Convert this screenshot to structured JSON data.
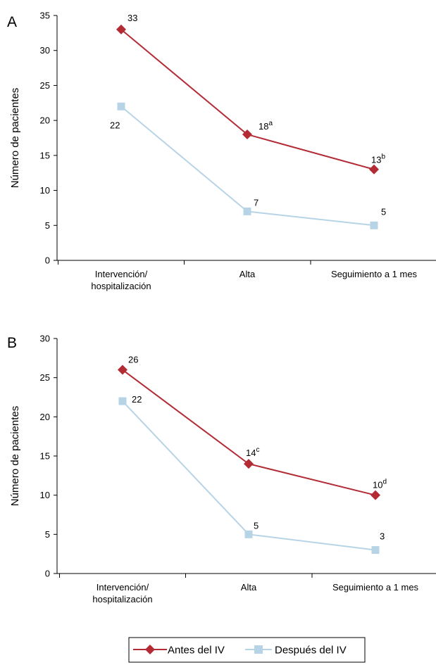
{
  "legend": {
    "series": [
      {
        "name": "Antes del IV",
        "color": "#b22b35",
        "marker": "diamond"
      },
      {
        "name": "Después del IV",
        "color": "#b7d4e6",
        "marker": "square"
      }
    ]
  },
  "chart_data": [
    {
      "type": "line",
      "panel": "A",
      "ylabel": "Número de pacientes",
      "ylim": [
        0,
        35
      ],
      "yticks": [
        0,
        5,
        10,
        15,
        20,
        25,
        30,
        35
      ],
      "categories": [
        [
          "Intervención/",
          "hospitalización"
        ],
        [
          "Alta"
        ],
        [
          "Seguimiento a 1 mes"
        ]
      ],
      "series": [
        {
          "name": "Antes del IV",
          "values": [
            33,
            18,
            13
          ],
          "labels": [
            "33",
            "18",
            "13"
          ],
          "superscripts": [
            "",
            "a",
            "b"
          ]
        },
        {
          "name": "Después del IV",
          "values": [
            22,
            7,
            5
          ],
          "labels": [
            "22",
            "7",
            "5"
          ],
          "superscripts": [
            "",
            "",
            ""
          ]
        }
      ]
    },
    {
      "type": "line",
      "panel": "B",
      "ylabel": "Número de pacientes",
      "ylim": [
        0,
        30
      ],
      "yticks": [
        0,
        5,
        10,
        15,
        20,
        25,
        30
      ],
      "categories": [
        [
          "Intervención/",
          "hospitalización"
        ],
        [
          "Alta"
        ],
        [
          "Seguimiento a 1 mes"
        ]
      ],
      "series": [
        {
          "name": "Antes del IV",
          "values": [
            26,
            14,
            10
          ],
          "labels": [
            "26",
            "14",
            "10"
          ],
          "superscripts": [
            "",
            "c",
            "d"
          ]
        },
        {
          "name": "Después del IV",
          "values": [
            22,
            5,
            3
          ],
          "labels": [
            "22",
            "5",
            "3"
          ],
          "superscripts": [
            "",
            "",
            ""
          ]
        }
      ]
    }
  ]
}
